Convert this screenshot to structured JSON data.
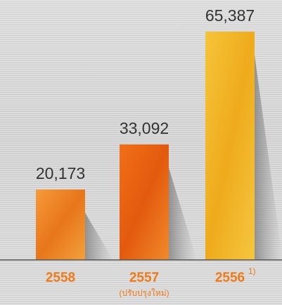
{
  "chart_data": {
    "type": "bar",
    "categories": [
      "2558",
      "2557",
      "2556"
    ],
    "category_superscripts": [
      "",
      "",
      "1)"
    ],
    "category_notes": [
      "",
      "(ปรับปรุงใหม่)",
      ""
    ],
    "values": [
      20173,
      33092,
      65387
    ],
    "value_labels": [
      "20,173",
      "33,092",
      "65,387"
    ],
    "title": "",
    "xlabel": "",
    "ylabel": "",
    "ylim": [
      0,
      65387
    ],
    "grid": false,
    "legend": "none",
    "colors": [
      "#f07a1a",
      "#f26a12",
      "#f2b21c"
    ],
    "label_color": "#f07a1a",
    "value_color": "#333333"
  }
}
